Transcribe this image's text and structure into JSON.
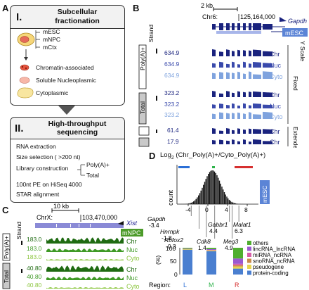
{
  "panelA": {
    "letter": "A",
    "box1": {
      "roman": "I.",
      "title_line1": "Subcellular",
      "title_line2": "fractionation",
      "tissues": [
        "mESC",
        "mNPC",
        "mCtx"
      ],
      "fractions": [
        "Chromatin-associated",
        "Soluble Nucleoplasmic",
        "Cytoplasmic"
      ]
    },
    "box2": {
      "roman": "II.",
      "title_line1": "High-throughput",
      "title_line2": "sequencing",
      "steps": [
        "RNA extraction",
        "Size selection ( >200 nt)",
        "Library construction",
        "100nt PE on HiSeq 4000",
        "STAR alignment"
      ],
      "library_types": [
        "Poly(A)+",
        "Total"
      ]
    }
  },
  "panelB": {
    "letter": "B",
    "scale": "2 kb",
    "chrom": "Chr6:",
    "coord": "125,164,000",
    "gene": "Gapdh",
    "strand_label": "Strand",
    "cell": "mESC",
    "yscale_label": "Y Scale",
    "fixed_label": "Fixed",
    "extended_label": "Extended",
    "group1": "Poly(A)+",
    "group2": "Total",
    "tracks": [
      {
        "value": "634.9",
        "fraction": "Chr"
      },
      {
        "value": "634.9",
        "fraction": "Nuc"
      },
      {
        "value": "634.9",
        "fraction": "Cyto"
      },
      {
        "value": "323.2",
        "fraction": "Chr"
      },
      {
        "value": "323.2",
        "fraction": "Nuc"
      },
      {
        "value": "323.2",
        "fraction": "Cyto"
      },
      {
        "value": "61.4",
        "fraction": "Chr"
      },
      {
        "value": "17.9",
        "fraction": "Chr"
      }
    ],
    "colors": {
      "chr": "#1a237e",
      "nuc": "#3949ab",
      "cyto": "#7fa3de",
      "label_blue": "#2746a8"
    }
  },
  "panelC": {
    "letter": "C",
    "scale": "10 kb",
    "chrom": "ChrX:",
    "coord": "103,470,000",
    "gene": "Xist",
    "strand_label": "Strand",
    "cell": "mNPC",
    "group1": "Poly(A)+",
    "group2": "Total",
    "tracks": [
      {
        "value": "183.0",
        "fraction": "Chr"
      },
      {
        "value": "183.0",
        "fraction": "Nuc"
      },
      {
        "value": "183.0",
        "fraction": "Cyto"
      },
      {
        "value": "40.80",
        "fraction": "Chr"
      },
      {
        "value": "40.80",
        "fraction": "Nuc"
      },
      {
        "value": "40.80",
        "fraction": "Cyto"
      }
    ],
    "colors": {
      "chr": "#1f6b12",
      "nuc": "#3f9a26",
      "cyto": "#8cc63f"
    }
  },
  "panelD": {
    "letter": "D",
    "title": "Log",
    "title_sub": "2",
    "title_rest": " (Chr_Poly(A)+/Cyto_Poly(A)+)",
    "cell": "mESC",
    "ylabel": "count",
    "ticks": [
      "-4",
      "0",
      "4",
      "8"
    ],
    "genes_above": [
      {
        "name": "Gapdh",
        "value": "-3.4"
      },
      {
        "name": "Hnrnpk",
        "value": "-1.8"
      },
      {
        "name": "Rbfox2",
        "value": "-0.3"
      },
      {
        "name": "Cdk8",
        "value": "1.4"
      },
      {
        "name": "Gabbr1",
        "value": "4.4"
      },
      {
        "name": "Meg3",
        "value": "4.9"
      },
      {
        "name": "Malat1",
        "value": "6.3"
      }
    ],
    "bar_ylabel": "(%)",
    "bar_yticks": [
      "100",
      "50",
      "0"
    ],
    "region_label": "Region:",
    "regions": [
      "L",
      "M",
      "R"
    ],
    "region_colors": [
      "#2b6fd6",
      "#2db34a",
      "#d63030"
    ],
    "legend": [
      {
        "label": "others",
        "color": "#4fae2f"
      },
      {
        "label": "lincRNA_lncRNA",
        "color": "#9b59d0"
      },
      {
        "label": "miRNA_ncRNA",
        "color": "#d65ca8"
      },
      {
        "label": "snoRNA_ncRNA",
        "color": "#c98a4b"
      },
      {
        "label": "pseudogene",
        "color": "#e8d44d"
      },
      {
        "label": "protein-coding",
        "color": "#4a7fd0"
      }
    ],
    "stacks": [
      {
        "region": "L",
        "values": [
          3,
          1,
          0.5,
          0.5,
          2,
          93
        ]
      },
      {
        "region": "M",
        "values": [
          5,
          3,
          1,
          1,
          3,
          87
        ]
      },
      {
        "region": "R",
        "values": [
          40,
          20,
          5,
          5,
          8,
          22
        ]
      }
    ]
  }
}
